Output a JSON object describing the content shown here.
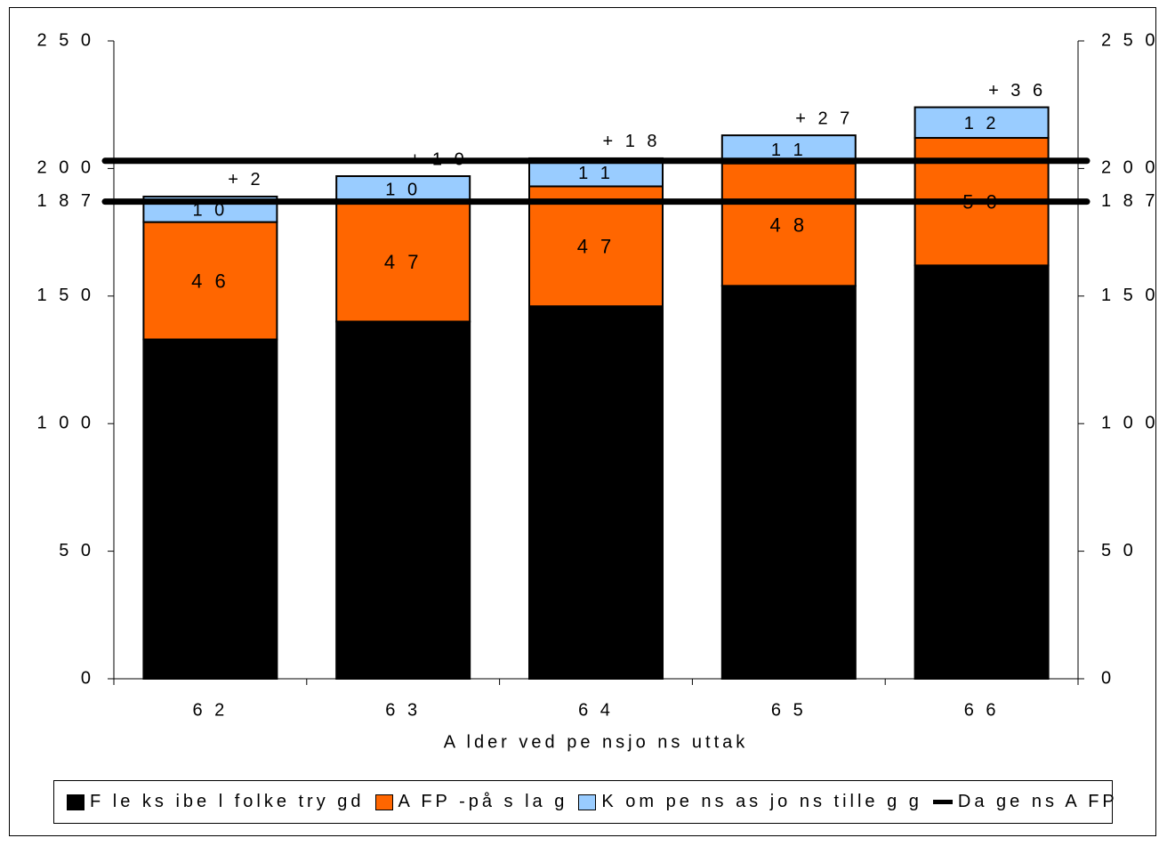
{
  "chart_data": {
    "type": "bar",
    "stacked": true,
    "title": "",
    "xlabel": "A lder ved pe nsjo ns uttak",
    "ylabel": "",
    "ylim": [
      0,
      250
    ],
    "yticks": [
      0,
      50,
      100,
      150,
      200,
      250
    ],
    "ytick_labels": [
      "0",
      "5 0",
      "1 0 0",
      "1 5 0",
      "2 0 0",
      "2 5 0"
    ],
    "extra_tick_label": "1 8 7",
    "extra_tick_value": 187,
    "categories": [
      "6 2",
      "6 3",
      "6 4",
      "6 5",
      "6 6"
    ],
    "series": [
      {
        "name": "F le ks ibe l folke try gd",
        "color": "#000000",
        "values": [
          133,
          140,
          146,
          154,
          162
        ],
        "labels": [
          "1 3 3",
          "1 4 0",
          "1 4 6",
          "1 5 4",
          "1 6 2"
        ]
      },
      {
        "name": "A FP -på s la g",
        "color": "#ff6600",
        "values": [
          46,
          47,
          47,
          48,
          50
        ],
        "labels": [
          "4 6",
          "4 7",
          "4 7",
          "4 8",
          "5 0"
        ]
      },
      {
        "name": "K om pe ns as jo ns tille g g",
        "color": "#99ccff",
        "values": [
          10,
          10,
          11,
          11,
          12
        ],
        "labels": [
          "1 0",
          "1 0",
          "1 1",
          "1 1",
          "1 2"
        ]
      }
    ],
    "diff_labels": [
      "+ 2",
      "+ 1 0",
      "+ 1 8",
      "+ 2 7",
      "+ 3 6"
    ],
    "reference_lines": [
      {
        "name": "Da ge ns A FP",
        "value": 203
      },
      {
        "name": "Da ge ns A FP",
        "value": 187
      }
    ],
    "legend_position": "bottom",
    "grid": false
  }
}
